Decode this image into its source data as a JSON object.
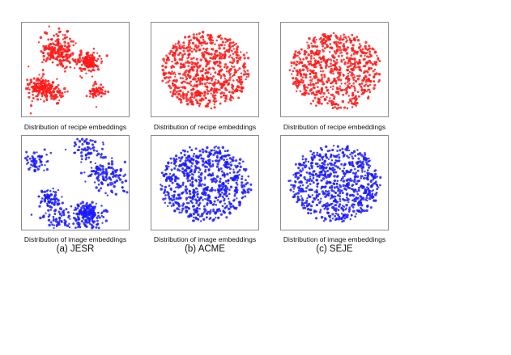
{
  "colors": {
    "recipe": "#ff1a1a",
    "image": "#1a1aff"
  },
  "chart_data": [
    {
      "type": "scatter",
      "model": "JESR",
      "embedding": "recipe",
      "caption": "Distribution of recipe embeddings",
      "shape": "clusters",
      "seed": 11
    },
    {
      "type": "scatter",
      "model": "ACME",
      "embedding": "recipe",
      "caption": "Distribution of recipe embeddings",
      "shape": "blob",
      "seed": 23
    },
    {
      "type": "scatter",
      "model": "SEJE",
      "embedding": "recipe",
      "caption": "Distribution of recipe embeddings",
      "shape": "blob",
      "seed": 37
    },
    {
      "type": "scatter",
      "model": "JESR",
      "embedding": "image",
      "caption": "Distribution of image embeddings",
      "shape": "clusters",
      "seed": 41
    },
    {
      "type": "scatter",
      "model": "ACME",
      "embedding": "image",
      "caption": "Distribution of image embeddings",
      "shape": "blob",
      "seed": 53
    },
    {
      "type": "scatter",
      "model": "SEJE",
      "embedding": "image",
      "caption": "Distribution of image embeddings",
      "shape": "blob",
      "seed": 67
    }
  ],
  "subfigure_labels": [
    "(a) JESR",
    "(b) ACME",
    "(c) SEJE"
  ]
}
